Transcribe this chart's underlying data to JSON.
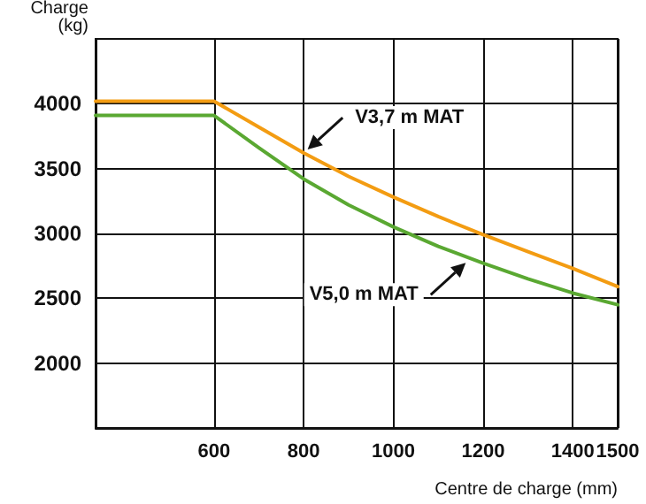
{
  "chart_data": {
    "type": "line",
    "xlabel": "Centre de charge (mm)",
    "ylabel": "Charge\n(kg)",
    "xlim": [
      336,
      1500
    ],
    "xticks": [
      600,
      800,
      1000,
      1200,
      1400,
      1500
    ],
    "ylim": [
      1500,
      4500
    ],
    "yticks": [
      2000,
      2500,
      3000,
      3500,
      4000
    ],
    "grid": true,
    "marker": "none",
    "line_style": "solid",
    "series": [
      {
        "color": "#f39c12",
        "x": [
          336,
          600,
          700,
          800,
          900,
          1000,
          1100,
          1200,
          1300,
          1400,
          1500
        ],
        "values": [
          4020,
          4020,
          3820,
          3620,
          3440,
          3280,
          3130,
          2990,
          2860,
          2730,
          2590
        ]
      },
      {
        "color": "#5aa832",
        "x": [
          336,
          600,
          700,
          800,
          900,
          1000,
          1100,
          1200,
          1300,
          1400,
          1500
        ],
        "values": [
          3910,
          3910,
          3660,
          3420,
          3220,
          3050,
          2900,
          2770,
          2650,
          2540,
          2450
        ]
      }
    ],
    "annotations": [
      {
        "text": "V3,7 m MAT",
        "x": 800,
        "y": 3620
      },
      {
        "text": "V5,0 m MAT",
        "x": 1170,
        "y": 2800
      }
    ]
  }
}
